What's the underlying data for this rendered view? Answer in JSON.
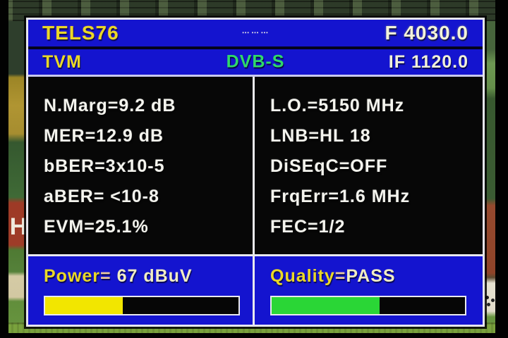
{
  "colors": {
    "panel_blue": "#1414cf",
    "text_yellow": "#ead827",
    "text_white": "#f3f3da",
    "standard_green": "#2fd96a",
    "power_bar_yellow": "#f2e600",
    "quality_bar_green": "#2ad636",
    "screen_black": "#070707",
    "border_white": "#e9e9ee"
  },
  "header": {
    "title": "TELS76",
    "indicator_marks": "▪▪▪ ▪▪▪ ▪▪▪",
    "frequency": "F 4030.0"
  },
  "subheader": {
    "name": "TVM",
    "standard": "DVB-S",
    "if_frequency": "IF 1120.0"
  },
  "equals": "=",
  "measurements": {
    "left": [
      {
        "label": "N.Marg",
        "value": "9.2 dB"
      },
      {
        "label": "MER",
        "value": "12.9 dB"
      },
      {
        "label": "bBER",
        "value": "3x10-5"
      },
      {
        "label": "aBER",
        "value": " <10-8"
      },
      {
        "label": "EVM",
        "value": "25.1%"
      }
    ],
    "right": [
      {
        "label": "L.O.",
        "value": "5150 MHz"
      },
      {
        "label": "LNB",
        "value": "HL 18"
      },
      {
        "label": "DiSEqC",
        "value": "OFF"
      },
      {
        "label": "FrqErr",
        "value": "1.6 MHz"
      },
      {
        "label": "FEC",
        "value": "1/2"
      }
    ]
  },
  "power": {
    "label": "Power",
    "value": " 67 dBuV",
    "bar_fill_percent": 40
  },
  "quality": {
    "label": "Quality",
    "value": "PASS",
    "bar_fill_percent": 56
  },
  "background": {
    "left_sign_letter": "H"
  }
}
